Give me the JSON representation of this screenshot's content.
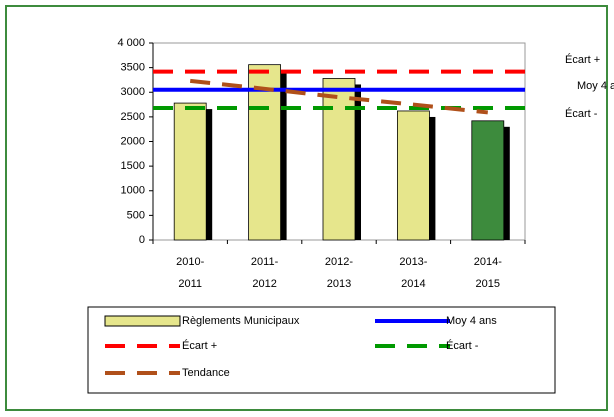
{
  "chart_data": {
    "type": "bar",
    "categories": [
      [
        "2010-",
        "2011"
      ],
      [
        "2011-",
        "2012"
      ],
      [
        "2012-",
        "2013"
      ],
      [
        "2013-",
        "2014"
      ],
      [
        "2014-",
        "2015"
      ]
    ],
    "ylim": [
      0,
      4000
    ],
    "yticks": [
      0,
      500,
      1000,
      1500,
      2000,
      2500,
      3000,
      3500,
      {
        "value": 4000,
        "label": "4 000"
      }
    ],
    "series": [
      {
        "name": "Règlements Municipaux",
        "kind": "bar",
        "color": "#e6e68c",
        "point_colors": [
          "#e6e68c",
          "#e6e68c",
          "#e6e68c",
          "#e6e68c",
          "#3d8b3d"
        ],
        "values": [
          2780,
          3560,
          3280,
          2620,
          2420
        ]
      },
      {
        "name": "Moy 4 ans",
        "kind": "line",
        "color": "#0000ff",
        "dash": false,
        "values": [
          3050,
          3050,
          3050,
          3050,
          3050
        ]
      },
      {
        "name": "Écart +",
        "kind": "line",
        "color": "#ff0000",
        "dash": true,
        "values": [
          3420,
          3420,
          3420,
          3420,
          3420
        ]
      },
      {
        "name": "Écart -",
        "kind": "line",
        "color": "#009900",
        "dash": true,
        "values": [
          2680,
          2680,
          2680,
          2680,
          2680
        ]
      },
      {
        "name": "Tendance",
        "kind": "line",
        "color": "#b0501a",
        "dash": true,
        "values": [
          3230,
          3070,
          2900,
          2750,
          2590
        ]
      }
    ],
    "annotations": [
      "Écart +",
      "Moy 4 ans",
      "Écart -"
    ]
  }
}
